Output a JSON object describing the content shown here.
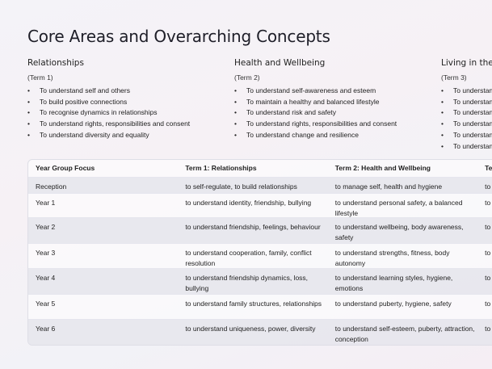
{
  "title": "Core Areas and Overarching Concepts",
  "areas": [
    {
      "heading": "Relationships",
      "term": "(Term 1)",
      "bullets": [
        "To understand self and others",
        "To build positive connections",
        "To recognise dynamics in relationships",
        "To understand rights, responsibilities and consent",
        "To understand diversity and equality"
      ]
    },
    {
      "heading": "Health and Wellbeing",
      "term": "(Term 2)",
      "bullets": [
        "To understand self-awareness and esteem",
        "To maintain a healthy and balanced lifestyle",
        "To understand risk and safety",
        "To understand rights, responsibilities and consent",
        "To understand change and resilience"
      ]
    },
    {
      "heading": "Living in the W",
      "term": "(Term 3)",
      "bullets": [
        "To understan",
        "To understan",
        "To understan",
        "To understan",
        "To understan",
        "To understan"
      ]
    }
  ],
  "table": {
    "headers": [
      "Year Group Focus",
      "Term 1: Relationships",
      "Term 2: Health and Wellbeing",
      "Te"
    ],
    "rows": [
      [
        "Reception",
        "to self-regulate, to build relationships",
        "to manage self, health and hygiene",
        "to"
      ],
      [
        "Year 1",
        "to understand identity, friendship, bullying",
        "to understand personal safety, a balanced lifestyle",
        "to ch"
      ],
      [
        "Year 2",
        "to understand friendship, feelings, behaviour",
        "to understand wellbeing, body awareness, safety",
        "to di"
      ],
      [
        "Year 3",
        "to understand cooperation, family, conflict resolution",
        "to understand strengths, fitness, body autonomy",
        "to di"
      ],
      [
        "Year 4",
        "to understand friendship dynamics, loss, bullying",
        "to understand learning styles, hygiene, emotions",
        "to"
      ],
      [
        "Year 5",
        "to understand family structures, relationships",
        "to understand puberty, hygiene, safety",
        "to or"
      ],
      [
        "Year 6",
        "to understand uniqueness, power, diversity",
        "to understand self-esteem, puberty, attraction, conception",
        "to di"
      ]
    ]
  }
}
